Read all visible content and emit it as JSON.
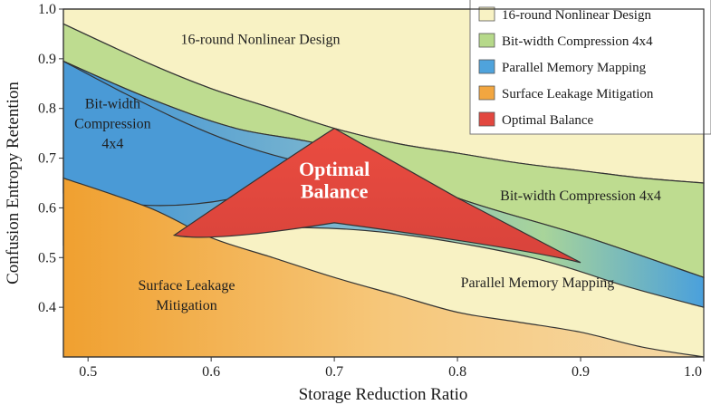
{
  "chart_data": {
    "type": "area",
    "xlabel": "Storage Reduction Ratio",
    "ylabel": "Confusion Entropy Retention",
    "xlim": [
      0.48,
      1.0
    ],
    "ylim": [
      0.3,
      1.0
    ],
    "x_ticks": [
      "0.5",
      "0.6",
      "0.7",
      "0.8",
      "0.9",
      "1.0"
    ],
    "y_ticks": [
      "0.4",
      "0.5",
      "0.6",
      "0.7",
      "0.8",
      "0.9",
      "1.0"
    ],
    "legend_position": "top-right",
    "legend": [
      {
        "label": "16-round Nonlinear Design",
        "color": "#f8f2c4"
      },
      {
        "label": "Bit-width Compression 4x4",
        "color": "#b6d98a"
      },
      {
        "label": "Parallel Memory Mapping",
        "color": "#4fa3dc"
      },
      {
        "label": "Surface Leakage Mitigation",
        "color": "#f2a640"
      },
      {
        "label": "Optimal Balance",
        "color": "#e2473f"
      }
    ],
    "series": [
      {
        "name": "16-round Nonlinear Design",
        "x": [
          0.48,
          1.0
        ],
        "y_lower": [
          0.97,
          0.65
        ],
        "y_upper": [
          1.0,
          1.0
        ]
      },
      {
        "name": "Bit-width Compression 4x4",
        "x": [
          0.48,
          0.55,
          0.6,
          0.65,
          0.7,
          0.75,
          0.8,
          0.85,
          0.9,
          0.95,
          1.0
        ],
        "y_upper": [
          0.97,
          0.89,
          0.84,
          0.8,
          0.76,
          0.73,
          0.71,
          0.69,
          0.675,
          0.66,
          0.65
        ]
      },
      {
        "name": "Parallel Memory Mapping",
        "x": [
          0.48,
          0.53,
          0.58,
          0.62,
          0.66,
          0.7
        ],
        "y_upper": [
          0.895,
          0.83,
          0.77,
          0.73,
          0.7,
          0.68
        ]
      },
      {
        "name": "Surface Leakage Mitigation",
        "x": [
          0.48,
          0.55,
          0.6,
          0.65,
          0.7,
          0.75,
          0.8,
          0.85,
          0.9,
          0.95,
          1.0
        ],
        "y_upper": [
          0.66,
          0.6,
          0.54,
          0.5,
          0.46,
          0.425,
          0.39,
          0.37,
          0.35,
          0.32,
          0.3
        ]
      },
      {
        "name": "Optimal Balance",
        "x": [
          0.57,
          0.65,
          0.7,
          0.8,
          0.9,
          0.85,
          0.7,
          0.6
        ],
        "y": [
          0.545,
          0.68,
          0.76,
          0.62,
          0.49,
          0.52,
          0.57,
          0.53
        ]
      }
    ],
    "annotations": [
      {
        "text": "16-round Nonlinear Design",
        "x": 0.64,
        "y": 0.93
      },
      {
        "text": "Bit-width",
        "x": 0.52,
        "y": 0.8
      },
      {
        "text": "Compression",
        "x": 0.52,
        "y": 0.76
      },
      {
        "text": "4x4",
        "x": 0.52,
        "y": 0.72
      },
      {
        "text": "Optimal",
        "x": 0.7,
        "y": 0.665
      },
      {
        "text": "Balance",
        "x": 0.7,
        "y": 0.62
      },
      {
        "text": "Bit-width Compression 4x4",
        "x": 0.9,
        "y": 0.615
      },
      {
        "text": "Parallel Memory Mapping",
        "x": 0.865,
        "y": 0.44
      },
      {
        "text": "Surface Leakage",
        "x": 0.58,
        "y": 0.435
      },
      {
        "text": "Mitigation",
        "x": 0.58,
        "y": 0.395
      }
    ]
  }
}
